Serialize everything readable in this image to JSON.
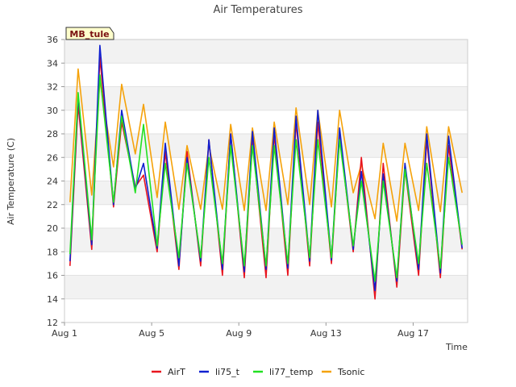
{
  "chart_data": {
    "type": "line",
    "title": "Air Temperatures",
    "xlabel": "Time",
    "ylabel": "Air Temperature (C)",
    "station_tag": "MB_tule",
    "ylim": [
      12,
      36
    ],
    "y_ticks": [
      12,
      14,
      16,
      18,
      20,
      22,
      24,
      26,
      28,
      30,
      32,
      34,
      36
    ],
    "xlim": [
      "2023-08-01T00:00",
      "2023-08-19T12:00"
    ],
    "x_ticks": [
      {
        "label": "Aug 1",
        "date": "2023-08-01"
      },
      {
        "label": "Aug 5",
        "date": "2023-08-05"
      },
      {
        "label": "Aug 9",
        "date": "2023-08-09"
      },
      {
        "label": "Aug 13",
        "date": "2023-08-13"
      },
      {
        "label": "Aug 17",
        "date": "2023-08-17"
      }
    ],
    "x_dates": [
      "2023-08-01T06:00",
      "2023-08-01T15:00",
      "2023-08-02T06:00",
      "2023-08-02T15:00",
      "2023-08-03T06:00",
      "2023-08-03T15:00",
      "2023-08-04T06:00",
      "2023-08-04T15:00",
      "2023-08-05T06:00",
      "2023-08-05T15:00",
      "2023-08-06T06:00",
      "2023-08-06T15:00",
      "2023-08-07T06:00",
      "2023-08-07T15:00",
      "2023-08-08T06:00",
      "2023-08-08T15:00",
      "2023-08-09T06:00",
      "2023-08-09T15:00",
      "2023-08-10T06:00",
      "2023-08-10T15:00",
      "2023-08-11T06:00",
      "2023-08-11T15:00",
      "2023-08-12T06:00",
      "2023-08-12T15:00",
      "2023-08-13T06:00",
      "2023-08-13T15:00",
      "2023-08-14T06:00",
      "2023-08-14T15:00",
      "2023-08-15T06:00",
      "2023-08-15T15:00",
      "2023-08-16T06:00",
      "2023-08-16T15:00",
      "2023-08-17T06:00",
      "2023-08-17T15:00",
      "2023-08-18T06:00",
      "2023-08-18T15:00",
      "2023-08-19T06:00"
    ],
    "series": [
      {
        "name": "AirT",
        "color": "#e8141e",
        "values": [
          16.8,
          30.5,
          18.2,
          34.5,
          21.8,
          29.0,
          23.5,
          24.5,
          18.0,
          26.5,
          16.5,
          26.5,
          16.8,
          27.5,
          16.0,
          28.0,
          15.8,
          27.5,
          15.8,
          28.0,
          16.0,
          29.0,
          16.8,
          29.0,
          17.0,
          28.0,
          18.0,
          26.0,
          14.0,
          25.5,
          15.0,
          25.0,
          16.0,
          27.5,
          15.8,
          27.0,
          18.2
        ]
      },
      {
        "name": "li75_t",
        "color": "#1020d0",
        "values": [
          17.2,
          31.2,
          18.6,
          35.5,
          22.0,
          30.0,
          23.3,
          25.5,
          18.3,
          27.2,
          16.8,
          26.0,
          17.2,
          27.5,
          16.5,
          28.0,
          16.3,
          28.2,
          16.5,
          28.5,
          16.6,
          29.5,
          17.2,
          30.0,
          17.3,
          28.5,
          18.2,
          24.8,
          14.7,
          24.6,
          15.5,
          25.5,
          16.5,
          28.0,
          16.2,
          27.8,
          18.3
        ]
      },
      {
        "name": "li77_temp",
        "color": "#22e022",
        "values": [
          17.8,
          31.5,
          19.0,
          33.0,
          22.2,
          29.5,
          23.0,
          28.8,
          18.5,
          25.5,
          17.5,
          25.5,
          17.5,
          26.0,
          17.0,
          27.0,
          16.8,
          27.0,
          16.8,
          27.0,
          17.0,
          27.5,
          17.5,
          27.5,
          17.5,
          27.5,
          18.5,
          24.0,
          15.5,
          24.0,
          15.8,
          25.0,
          17.0,
          25.5,
          16.6,
          26.0,
          18.6
        ]
      },
      {
        "name": "Tsonic",
        "color": "#f5a20a",
        "values": [
          22.2,
          33.5,
          22.8,
          32.5,
          25.2,
          32.2,
          26.3,
          30.5,
          22.6,
          29.0,
          21.6,
          27.0,
          21.6,
          27.0,
          21.6,
          28.8,
          21.5,
          28.5,
          21.5,
          29.0,
          22.0,
          30.2,
          22.0,
          30.0,
          21.8,
          30.0,
          23.0,
          25.4,
          20.8,
          27.2,
          20.6,
          27.2,
          21.5,
          28.6,
          21.4,
          28.6,
          23.0
        ]
      }
    ],
    "grid": true,
    "legend_position": "bottom"
  }
}
